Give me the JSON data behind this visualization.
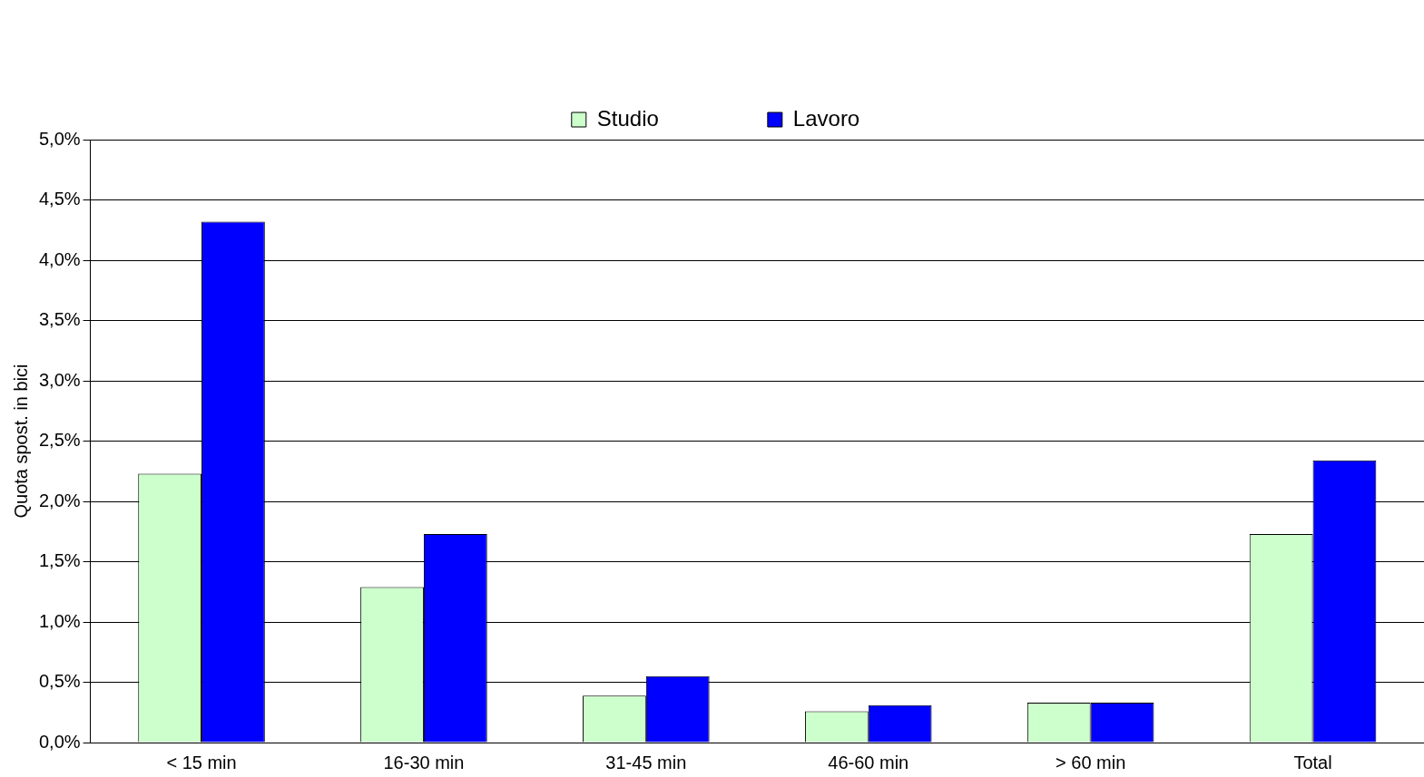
{
  "chart_data": {
    "type": "bar",
    "ylabel": "Quota spost. in bici",
    "categories": [
      "< 15 min",
      "16-30 min",
      "31-45 min",
      "46-60 min",
      "> 60 min",
      "Total"
    ],
    "series": [
      {
        "name": "Studio",
        "color": "#ccffcc",
        "values": [
          2.23,
          1.29,
          0.39,
          0.26,
          0.33,
          1.73
        ]
      },
      {
        "name": "Lavoro",
        "color": "#0000ff",
        "values": [
          4.32,
          1.73,
          0.55,
          0.31,
          0.33,
          2.34
        ]
      }
    ],
    "ylim": [
      0,
      5
    ],
    "yticks": [
      {
        "value": 0,
        "label": "0,0%"
      },
      {
        "value": 0.5,
        "label": "0,5%"
      },
      {
        "value": 1,
        "label": "1,0%"
      },
      {
        "value": 1.5,
        "label": "1,5%"
      },
      {
        "value": 2,
        "label": "2,0%"
      },
      {
        "value": 2.5,
        "label": "2,5%"
      },
      {
        "value": 3,
        "label": "3,0%"
      },
      {
        "value": 3.5,
        "label": "3,5%"
      },
      {
        "value": 4,
        "label": "4,0%"
      },
      {
        "value": 4.5,
        "label": "4,5%"
      },
      {
        "value": 5,
        "label": "5,0%"
      }
    ],
    "grid": "y",
    "legend": "top"
  }
}
